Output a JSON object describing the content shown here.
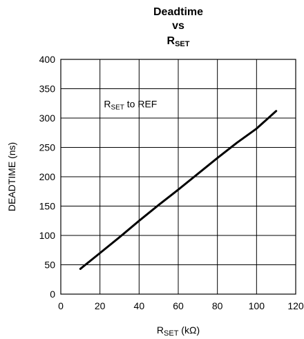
{
  "chart_data": {
    "type": "line",
    "title": {
      "line1": "Deadtime",
      "line2": "vs",
      "line3_main": "R",
      "line3_sub": "SET"
    },
    "xlabel": {
      "main": "R",
      "sub": "SET",
      "unit": " (kΩ)"
    },
    "ylabel": "DEADTIME (ns)",
    "xlim": [
      0,
      120
    ],
    "ylim": [
      0,
      400
    ],
    "xticks": [
      0,
      20,
      40,
      60,
      80,
      100,
      120
    ],
    "yticks": [
      0,
      50,
      100,
      150,
      200,
      250,
      300,
      350,
      400
    ],
    "grid": true,
    "annotation": {
      "main": "R",
      "sub": "SET",
      "rest": " to REF",
      "x": 22,
      "y": 318
    },
    "series": [
      {
        "x": [
          10,
          20,
          30,
          40,
          50,
          60,
          70,
          80,
          90,
          100,
          110
        ],
        "y": [
          43,
          70,
          97,
          125,
          152,
          178,
          205,
          232,
          258,
          282,
          312
        ]
      }
    ]
  }
}
